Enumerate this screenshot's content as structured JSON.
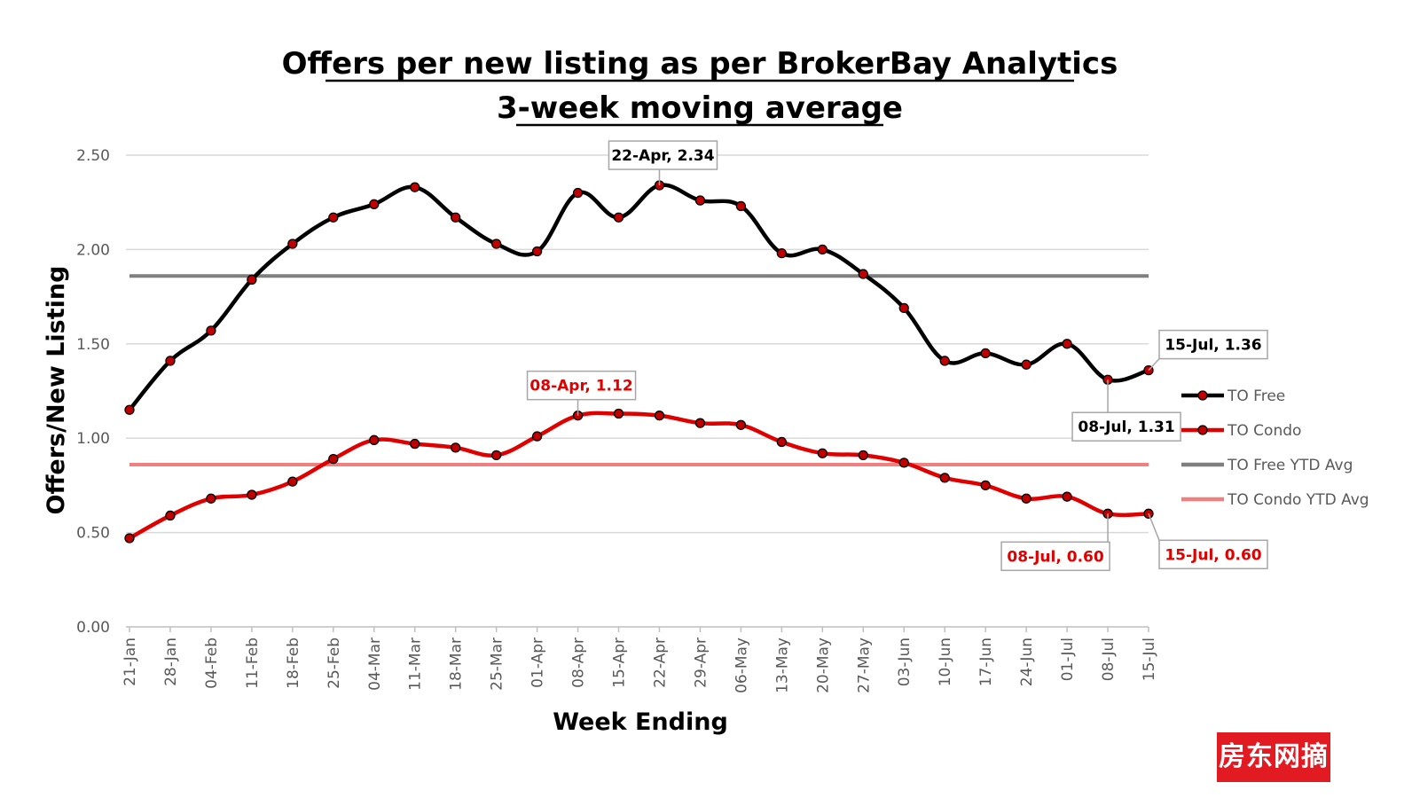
{
  "chart_data": {
    "type": "line",
    "title": "Offers per new listing as per BrokerBay Analytics",
    "subtitle": "3-week moving average",
    "xlabel": "Week Ending",
    "ylabel": "Offers/New Listing",
    "ylim": [
      0,
      2.5
    ],
    "yticks": [
      "0.00",
      "0.50",
      "1.00",
      "1.50",
      "2.00",
      "2.50"
    ],
    "grid": true,
    "legend_position": "right",
    "categories": [
      "21-Jan",
      "28-Jan",
      "04-Feb",
      "11-Feb",
      "18-Feb",
      "25-Feb",
      "04-Mar",
      "11-Mar",
      "18-Mar",
      "25-Mar",
      "01-Apr",
      "08-Apr",
      "15-Apr",
      "22-Apr",
      "29-Apr",
      "06-May",
      "13-May",
      "20-May",
      "27-May",
      "03-Jun",
      "10-Jun",
      "17-Jun",
      "24-Jun",
      "01-Jul",
      "08-Jul",
      "15-Jul"
    ],
    "series": [
      {
        "name": "TO Free",
        "color": "#000000",
        "marker_fill": "#c00000",
        "values": [
          1.15,
          1.41,
          1.57,
          1.84,
          2.03,
          2.17,
          2.24,
          2.33,
          2.17,
          2.03,
          1.99,
          2.3,
          2.17,
          2.34,
          2.26,
          2.23,
          1.98,
          2.0,
          1.87,
          1.69,
          1.41,
          1.45,
          1.39,
          1.5,
          1.31,
          1.36
        ]
      },
      {
        "name": "TO Condo",
        "color": "#e00000",
        "marker_fill": "#c00000",
        "values": [
          0.47,
          0.59,
          0.68,
          0.7,
          0.77,
          0.89,
          0.99,
          0.97,
          0.95,
          0.91,
          1.01,
          1.12,
          1.13,
          1.12,
          1.08,
          1.07,
          0.98,
          0.92,
          0.91,
          0.87,
          0.79,
          0.75,
          0.68,
          0.69,
          0.6,
          0.6
        ]
      },
      {
        "name": "TO Free YTD Avg",
        "color": "#7f7f7f",
        "values_constant": 1.86
      },
      {
        "name": "TO Condo YTD Avg",
        "color": "#f08080",
        "values_constant": 0.86
      }
    ],
    "annotations": [
      {
        "series": 0,
        "index": 13,
        "label": "22-Apr, 2.34",
        "color": "#000000",
        "anchor": "above"
      },
      {
        "series": 0,
        "index": 25,
        "label": "15-Jul, 1.36",
        "color": "#000000",
        "anchor": "above-right"
      },
      {
        "series": 0,
        "index": 24,
        "label": "08-Jul, 1.31",
        "color": "#000000",
        "anchor": "below"
      },
      {
        "series": 1,
        "index": 11,
        "label": "08-Apr, 1.12",
        "color": "#e00000",
        "anchor": "above"
      },
      {
        "series": 1,
        "index": 24,
        "label": "08-Jul, 0.60",
        "color": "#e00000",
        "anchor": "below-left"
      },
      {
        "series": 1,
        "index": 25,
        "label": "15-Jul, 0.60",
        "color": "#e00000",
        "anchor": "below-right"
      }
    ]
  },
  "watermark": {
    "text": "房东网摘",
    "color": "#e21b23"
  }
}
